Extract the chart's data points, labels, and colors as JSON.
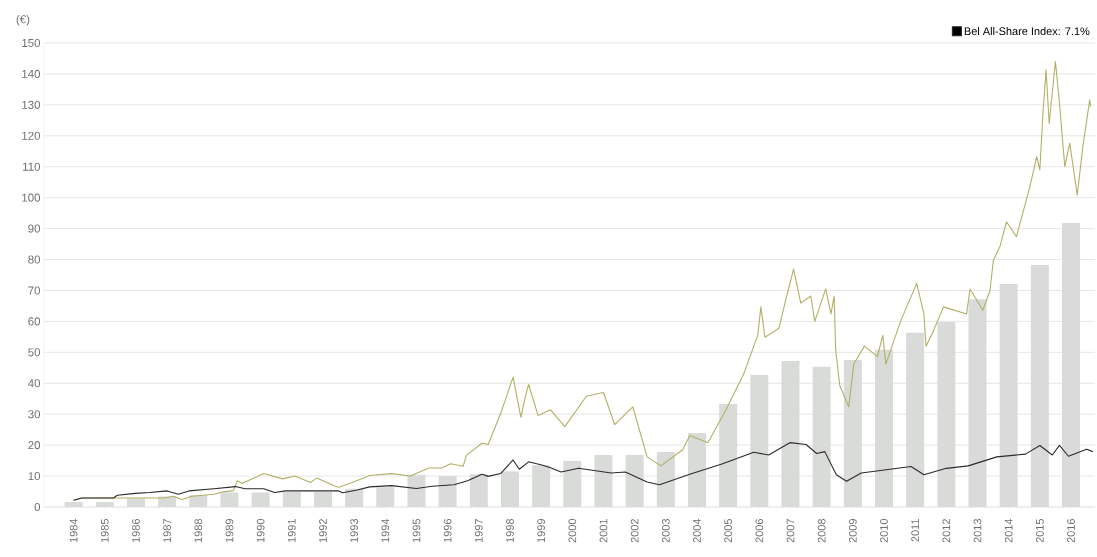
{
  "chart_data": {
    "type": "bar",
    "ylabel": "(€)",
    "x": [
      1984,
      1985,
      1986,
      1987,
      1988,
      1989,
      1990,
      1991,
      1992,
      1993,
      1994,
      1995,
      1996,
      1997,
      1998,
      1999,
      2000,
      2001,
      2002,
      2003,
      2004,
      2005,
      2006,
      2007,
      2008,
      2009,
      2010,
      2011,
      2012,
      2013,
      2014,
      2015,
      2016
    ],
    "series": [
      {
        "color": "#d9dbd8",
        "values": [
          1.6,
          1.6,
          2.8,
          3.4,
          3.8,
          4.7,
          4.7,
          4.9,
          4.9,
          5.9,
          6.4,
          10.4,
          10,
          10.6,
          11.5,
          13.5,
          14.9,
          16.8,
          16.8,
          17.8,
          23.9,
          33.3,
          42.7,
          47.2,
          45.3,
          47.5,
          50.8,
          56.3,
          59.8,
          67.2,
          72.1,
          78.2,
          91.8
        ]
      },
      {
        "type": "line",
        "color": "#b2b066",
        "x": [
          1984.0,
          1984.26,
          1986.9,
          1987.2,
          1987.47,
          1987.8,
          1988.5,
          1988.8,
          1989.13,
          1989.25,
          1989.4,
          1990.1,
          1990.7,
          1991.1,
          1991.6,
          1991.8,
          1992.4,
          1992.5,
          1992.86,
          1993.5,
          1994.2,
          1994.8,
          1995.4,
          1995.8,
          1996.1,
          1996.5,
          1996.6,
          1997.1,
          1997.3,
          1997.7,
          1997.9,
          1998.1,
          1998.35,
          1998.5,
          1998.6,
          1998.9,
          1999.3,
          1999.76,
          2000.45,
          2001.0,
          2001.36,
          2001.94,
          2002.4,
          2002.84,
          2003.54,
          2003.77,
          2004.35,
          2004.92,
          2005.49,
          2005.95,
          2006.05,
          2006.18,
          2006.63,
          2006.85,
          2007.1,
          2007.33,
          2007.65,
          2007.78,
          2008.13,
          2008.3,
          2008.4,
          2008.45,
          2008.58,
          2008.87,
          2009.03,
          2009.37,
          2009.79,
          2009.96,
          2010.06,
          2010.53,
          2011.05,
          2011.28,
          2011.35,
          2011.57,
          2011.91,
          2012.65,
          2012.76,
          2013.17,
          2013.4,
          2013.51,
          2013.72,
          2013.93,
          2014.25,
          2014.68,
          2014.9,
          2015.0,
          2015.1,
          2015.2,
          2015.3,
          2015.5,
          2015.64,
          2015.8,
          2015.96,
          2016.2,
          2016.38,
          2016.6,
          2016.63
        ],
        "values": [
          2.2,
          2.9,
          2.9,
          3.5,
          2.4,
          3.5,
          4.1,
          4.9,
          5.3,
          8.5,
          7.6,
          10.8,
          9.1,
          10,
          7.9,
          9.4,
          6.7,
          6.4,
          7.6,
          10.2,
          10.8,
          10,
          12.6,
          12.6,
          14,
          13.2,
          16.7,
          20.6,
          20.2,
          30.2,
          36.1,
          42,
          29,
          36,
          39.6,
          29.6,
          31.4,
          26,
          35.8,
          37,
          26.6,
          32.4,
          16.2,
          13.3,
          18.5,
          23.1,
          20.8,
          31.2,
          42.8,
          55.5,
          64.7,
          54.9,
          57.8,
          67,
          76.9,
          65.9,
          68.2,
          60,
          70.5,
          62.4,
          68.2,
          50.9,
          39.3,
          32.4,
          46.2,
          52,
          48.6,
          55.5,
          46.2,
          60,
          72.3,
          62.4,
          52,
          56.6,
          64.7,
          62.4,
          70.5,
          63.6,
          69.9,
          79.8,
          84.2,
          92.2,
          87.4,
          103.6,
          113.3,
          109,
          127.3,
          141.3,
          124,
          144,
          129.4,
          110,
          117.6,
          100.9,
          116.5,
          131.6,
          129.4
        ]
      },
      {
        "type": "line",
        "name": "Bel All-Share Index: 7.1%",
        "color": "#2b2b2b",
        "x": [
          1984.0,
          1984.26,
          1985.28,
          1985.4,
          1985.98,
          1986.44,
          1987.0,
          1987.36,
          1987.7,
          1988.5,
          1989.2,
          1989.5,
          1990.1,
          1990.45,
          1990.8,
          1992.5,
          1992.63,
          1993.1,
          1993.5,
          1994.2,
          1995.0,
          1995.5,
          1996.2,
          1996.64,
          1997.1,
          1997.3,
          1997.7,
          1998.1,
          1998.3,
          1998.6,
          1999.05,
          1999.3,
          1999.64,
          2000.2,
          2001.25,
          2001.7,
          2002.4,
          2002.8,
          2003.77,
          2004.8,
          2005.82,
          2006.3,
          2006.98,
          2007.5,
          2007.84,
          2008.1,
          2008.47,
          2008.8,
          2009.27,
          2010.87,
          2011.28,
          2012.0,
          2012.7,
          2013.62,
          2014.54,
          2015.0,
          2015.4,
          2015.63,
          2015.92,
          2016.5,
          2016.7
        ],
        "values": [
          2.2,
          2.9,
          2.9,
          3.8,
          4.4,
          4.7,
          5.2,
          4.1,
          5.2,
          5.9,
          6.6,
          5.9,
          5.9,
          4.7,
          5.2,
          5.2,
          4.6,
          5.5,
          6.5,
          6.9,
          6.0,
          6.7,
          7.2,
          8.5,
          10.6,
          9.9,
          10.8,
          15.2,
          12.2,
          14.6,
          13.5,
          12.7,
          11.3,
          12.5,
          11,
          11.3,
          8.1,
          7.2,
          10.6,
          13.9,
          17.7,
          16.8,
          20.8,
          20.2,
          17.3,
          17.9,
          10.4,
          8.3,
          11,
          13.1,
          10.4,
          12.5,
          13.3,
          16.2,
          17.1,
          19.9,
          16.8,
          19.9,
          16.4,
          18.7,
          17.9
        ]
      }
    ],
    "xlim": [
      1983.05,
      2016.77
    ],
    "xticks": [
      1984,
      1985,
      1986,
      1987,
      1988,
      1989,
      1990,
      1991,
      1992,
      1993,
      1994,
      1995,
      1996,
      1997,
      1998,
      1999,
      2000,
      2001,
      2002,
      2003,
      2004,
      2005,
      2006,
      2007,
      2008,
      2009,
      2010,
      2011,
      2012,
      2013,
      2014,
      2015,
      2016
    ],
    "ylim": [
      0,
      150
    ],
    "yticks": [
      0,
      10,
      20,
      30,
      40,
      50,
      60,
      70,
      80,
      90,
      100,
      110,
      120,
      130,
      140,
      150
    ],
    "grid": "y",
    "legend": "top right"
  }
}
